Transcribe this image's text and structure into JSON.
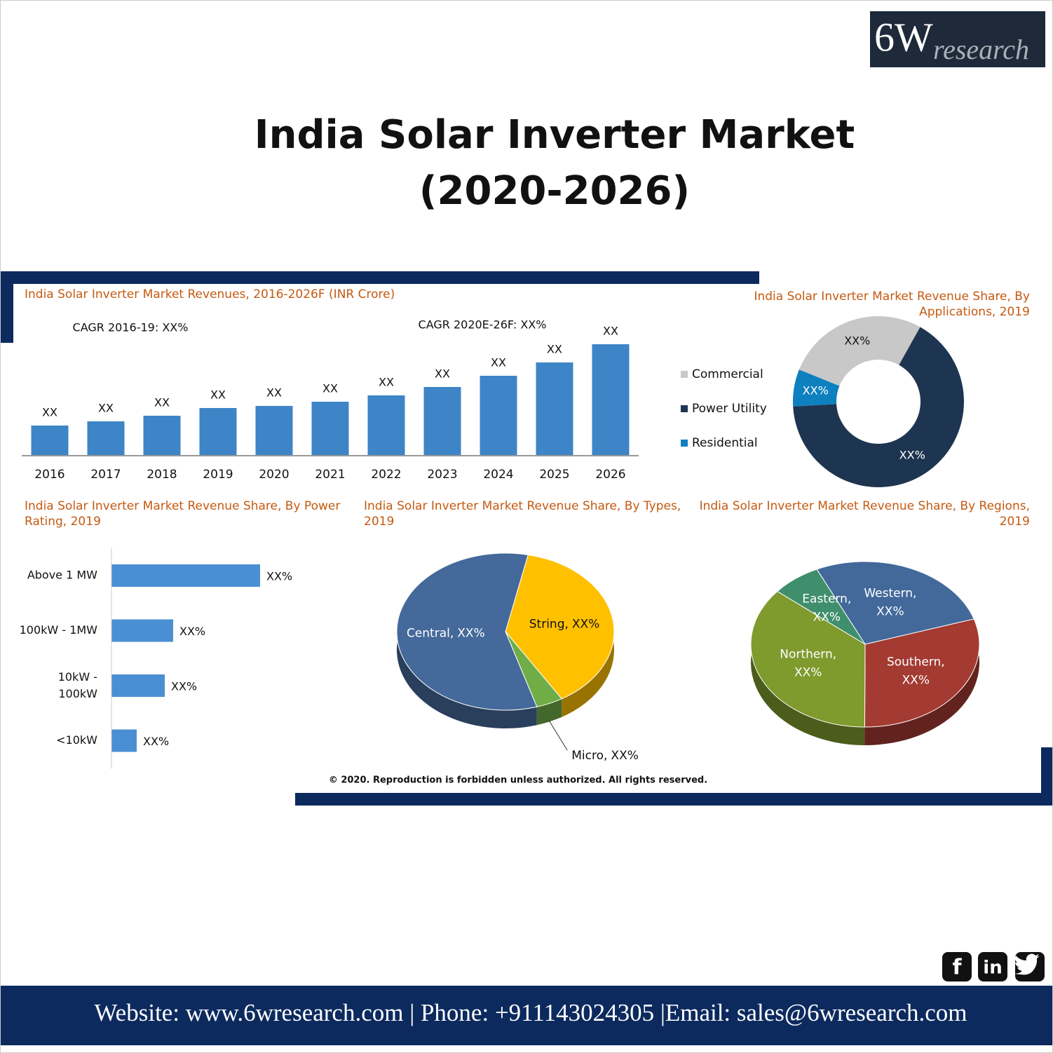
{
  "header": {
    "logo_mark": "6W",
    "logo_text": "research",
    "title": [
      "India Solar Inverter Market",
      "(2020-2026)"
    ]
  },
  "chart_data": [
    {
      "type": "bar",
      "title": "India Solar Inverter Market Revenues, 2016-2026F (INR Crore)",
      "annotations": [
        "CAGR 2016-19: XX%",
        "CAGR 2020E-26F: XX%"
      ],
      "categories": [
        "2016",
        "2017",
        "2018",
        "2019",
        "2020",
        "2021",
        "2022",
        "2023",
        "2024",
        "2025",
        "2026"
      ],
      "values": [
        42,
        48,
        56,
        67,
        70,
        76,
        85,
        97,
        113,
        132,
        158
      ],
      "value_labels": [
        "XX",
        "XX",
        "XX",
        "XX",
        "XX",
        "XX",
        "XX",
        "XX",
        "XX",
        "XX",
        "XX"
      ],
      "color": "#3d85c6",
      "ylim": [
        0,
        170
      ]
    },
    {
      "type": "donut",
      "title": "India Solar Inverter Market Revenue Share, By Applications, 2019",
      "categories": [
        "Commercial",
        "Power Utility",
        "Residential"
      ],
      "values": [
        27,
        66,
        7
      ],
      "value_labels": [
        "XX%",
        "XX%",
        "XX%"
      ],
      "colors": [
        "#c8c8c8",
        "#1d3550",
        "#0e7fbf"
      ],
      "legend": "left"
    },
    {
      "type": "barh",
      "title": "India Solar Inverter Market Revenue Share, By Power Rating, 2019",
      "categories": [
        "Above 1 MW",
        "100kW - 1MW",
        "10kW -\n100kW",
        "<10kW"
      ],
      "values": [
        53,
        22,
        19,
        9
      ],
      "value_labels": [
        "XX%",
        "XX%",
        "XX%",
        "XX%"
      ],
      "color": "#4a8fd4",
      "xlim": [
        0,
        65
      ]
    },
    {
      "type": "pie",
      "title": "India Solar Inverter Market Revenue Share, By Types, 2019",
      "categories": [
        "String,",
        "Micro,",
        "Central,"
      ],
      "values": [
        38,
        4,
        58
      ],
      "value_labels": [
        "XX%",
        "XX%",
        "XX%"
      ],
      "colors": [
        "#ffc000",
        "#70ad47",
        "#44699a"
      ]
    },
    {
      "type": "pie",
      "title": "India Solar Inverter Market Revenue Share, By Regions, 2019",
      "categories": [
        "Western,",
        "Southern,",
        "Northern,",
        "Eastern,"
      ],
      "values": [
        27,
        30,
        36,
        7
      ],
      "value_labels": [
        "XX%",
        "XX%",
        "XX%",
        "XX%"
      ],
      "colors": [
        "#43699b",
        "#a33b32",
        "#7f9a2d",
        "#3f8f6d"
      ]
    }
  ],
  "copyright": "© 2020. Reproduction is forbidden unless authorized. All rights reserved.",
  "footer": "Website: www.6wresearch.com | Phone: +911143024305 |Email: sales@6wresearch.com",
  "social": {
    "facebook": "f",
    "linkedin": "in"
  }
}
